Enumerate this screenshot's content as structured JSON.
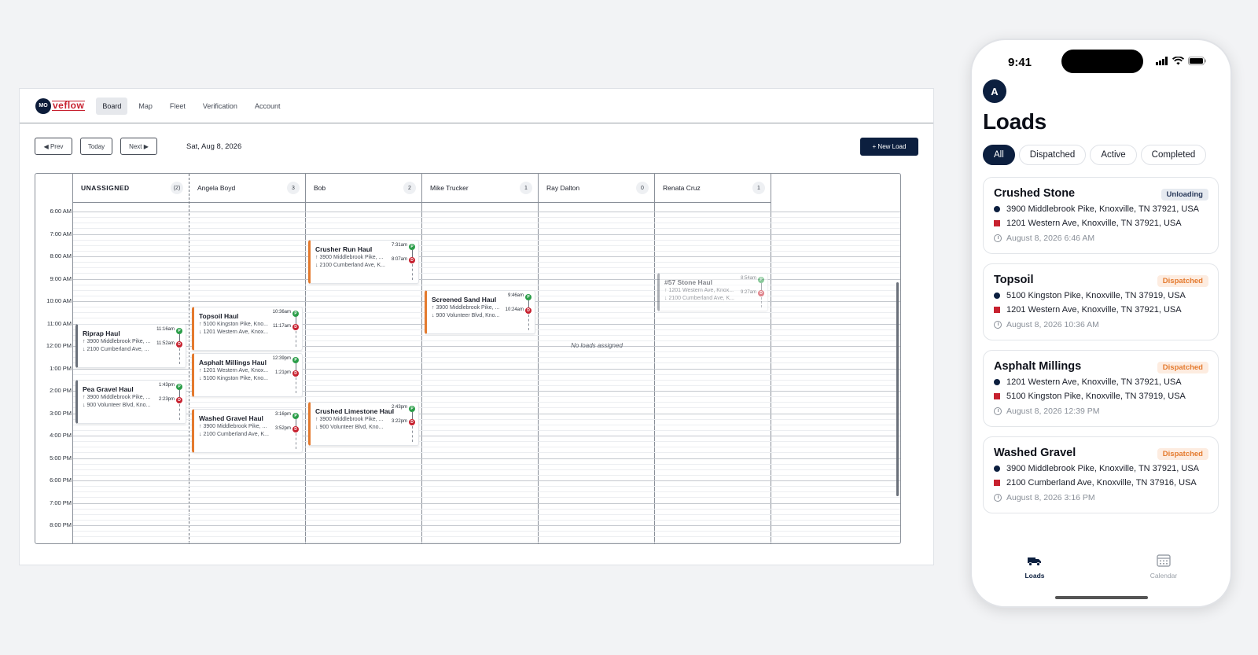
{
  "desktop": {
    "logo": {
      "mark": "MO",
      "word": "veflow"
    },
    "nav": [
      {
        "label": "Board",
        "active": true
      },
      {
        "label": "Map",
        "active": false
      },
      {
        "label": "Fleet",
        "active": false
      },
      {
        "label": "Verification",
        "active": false
      },
      {
        "label": "Account",
        "active": false
      }
    ],
    "toolbar": {
      "prev": "◀ Prev",
      "today": "Today",
      "next": "Next ▶",
      "date": "Sat, Aug 8, 2026",
      "new_load": "+ New Load"
    },
    "columns": [
      {
        "name": "UNASSIGNED",
        "count": "(2)"
      },
      {
        "name": "Angela Boyd",
        "count": "3"
      },
      {
        "name": "Bob",
        "count": "2"
      },
      {
        "name": "Mike Trucker",
        "count": "1"
      },
      {
        "name": "Ray Dalton",
        "count": "0"
      },
      {
        "name": "Renata Cruz",
        "count": "1"
      }
    ],
    "times": [
      "6:00 AM",
      "7:00 AM",
      "8:00 AM",
      "9:00 AM",
      "10:00 AM",
      "11:00 AM",
      "12:00 PM",
      "1:00 PM",
      "2:00 PM",
      "3:00 PM",
      "4:00 PM",
      "5:00 PM",
      "6:00 PM",
      "7:00 PM",
      "8:00 PM"
    ],
    "no_loads": "No loads assigned",
    "cards": [
      {
        "col": 0,
        "start": 11.0,
        "end": 13.0,
        "title": "Riprap Haul",
        "from": "↑ 3900 Middlebrook Pike, ...",
        "to": "↓ 2100 Cumberland Ave, ...",
        "pickup_time": "11:16am",
        "drop_time": "11:52am",
        "style": "grey"
      },
      {
        "col": 0,
        "start": 13.5,
        "end": 15.5,
        "title": "Pea Gravel Haul",
        "from": "↑ 3900 Middlebrook Pike, ...",
        "to": "↓ 900 Volunteer Blvd, Kno...",
        "pickup_time": "1:43pm",
        "drop_time": "2:23pm",
        "style": "grey"
      },
      {
        "col": 1,
        "start": 10.25,
        "end": 12.25,
        "title": "Topsoil Haul",
        "from": "↑ 5100 Kingston Pike, Kno...",
        "to": "↓ 1201 Western Ave, Knox...",
        "pickup_time": "10:36am",
        "drop_time": "11:17am",
        "style": "orange"
      },
      {
        "col": 1,
        "start": 12.3,
        "end": 14.3,
        "title": "Asphalt Millings Haul",
        "from": "↑ 1201 Western Ave, Knox...",
        "to": "↓ 5100 Kingston Pike, Kno...",
        "pickup_time": "12:39pm",
        "drop_time": "1:21pm",
        "style": "orange"
      },
      {
        "col": 1,
        "start": 14.8,
        "end": 16.8,
        "title": "Washed Gravel Haul",
        "from": "↑ 3900 Middlebrook Pike, ...",
        "to": "↓ 2100 Cumberland Ave, K...",
        "pickup_time": "3:16pm",
        "drop_time": "3:52pm",
        "style": "orange"
      },
      {
        "col": 2,
        "start": 7.25,
        "end": 9.25,
        "title": "Crusher Run Haul",
        "from": "↑ 3900 Middlebrook Pike, ...",
        "to": "↓ 2100 Cumberland Ave, K...",
        "pickup_time": "7:31am",
        "drop_time": "8:07am",
        "style": "orange"
      },
      {
        "col": 2,
        "start": 14.5,
        "end": 16.5,
        "title": "Crushed Limestone Haul",
        "from": "↑ 3900 Middlebrook Pike, ...",
        "to": "↓ 900 Volunteer Blvd, Kno...",
        "pickup_time": "2:43pm",
        "drop_time": "3:22pm",
        "style": "orange"
      },
      {
        "col": 3,
        "start": 9.5,
        "end": 11.5,
        "title": "Screened Sand Haul",
        "from": "↑ 3900 Middlebrook Pike, ...",
        "to": "↓ 900 Volunteer Blvd, Kno...",
        "pickup_time": "9:46am",
        "drop_time": "10:24am",
        "style": "orange"
      },
      {
        "col": 5,
        "start": 8.75,
        "end": 10.5,
        "title": "#57 Stone Haul",
        "from": "↑ 1201 Western Ave, Knox...",
        "to": "↓ 2100 Cumberland Ave, K...",
        "pickup_time": "8:54am",
        "drop_time": "9:27am",
        "style": "faded"
      }
    ]
  },
  "phone": {
    "status": {
      "time": "9:41"
    },
    "avatar": "A",
    "title": "Loads",
    "filters": [
      {
        "label": "All",
        "active": true
      },
      {
        "label": "Dispatched",
        "active": false
      },
      {
        "label": "Active",
        "active": false
      },
      {
        "label": "Completed",
        "active": false
      }
    ],
    "loads": [
      {
        "name": "Crushed Stone",
        "status": "Unloading",
        "pickup": "3900 Middlebrook Pike, Knoxville, TN 37921, USA",
        "dropoff": "1201 Western Ave, Knoxville, TN 37921, USA",
        "time": "August 8, 2026 6:46 AM"
      },
      {
        "name": "Topsoil",
        "status": "Dispatched",
        "pickup": "5100 Kingston Pike, Knoxville, TN 37919, USA",
        "dropoff": "1201 Western Ave, Knoxville, TN 37921, USA",
        "time": "August 8, 2026 10:36 AM"
      },
      {
        "name": "Asphalt Millings",
        "status": "Dispatched",
        "pickup": "1201 Western Ave, Knoxville, TN 37921, USA",
        "dropoff": "5100 Kingston Pike, Knoxville, TN 37919, USA",
        "time": "August 8, 2026 12:39 PM"
      },
      {
        "name": "Washed Gravel",
        "status": "Dispatched",
        "pickup": "3900 Middlebrook Pike, Knoxville, TN 37921, USA",
        "dropoff": "2100 Cumberland Ave, Knoxville, TN 37916, USA",
        "time": "August 8, 2026 3:16 PM"
      }
    ],
    "tabs": [
      {
        "label": "Loads",
        "icon": "truck-icon",
        "active": true
      },
      {
        "label": "Calendar",
        "icon": "calendar-icon",
        "active": false
      }
    ],
    "colors": {
      "navy": "#0c1f3f",
      "red": "#c7212f",
      "orange": "#e47a2e",
      "green": "#2a9d48"
    }
  }
}
